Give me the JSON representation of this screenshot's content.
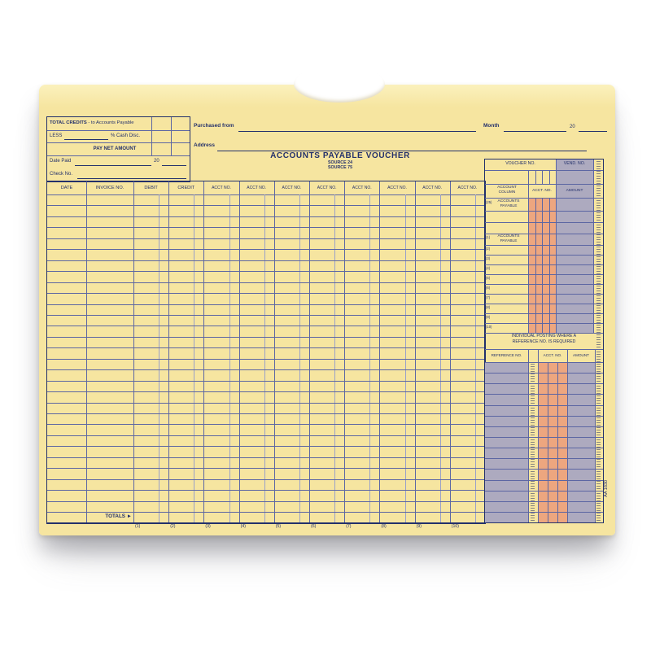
{
  "colors": {
    "paper": "#f6e5a0",
    "paper-light": "#fbf1bd",
    "ink": "#23306b",
    "line": "#5c66a3",
    "line-light": "#9aa1c9",
    "orange": "#eda67f",
    "gray": "#adaabf"
  },
  "form": {
    "title": "ACCOUNTS PAYABLE VOUCHER",
    "source_line1": "SOURCE 24",
    "source_line2": "SOURCE 75",
    "form_number": "AA 1830"
  },
  "top_left_box": {
    "row1_bold": "TOTAL CREDITS",
    "row1_rest": "- to Accounts Payable",
    "row2_pre": "LESS",
    "row2_post": "% Cash Disc.",
    "row3_label": "PAY NET AMOUNT",
    "date_paid_label": "Date Paid",
    "date_paid_year": "20",
    "check_no_label": "Check No."
  },
  "header_fields": {
    "purchased_from_label": "Purchased from",
    "address_label": "Address",
    "month_label": "Month",
    "month_year": "20"
  },
  "main_table": {
    "columns": [
      "DATE",
      "INVOICE NO.",
      "DEBIT",
      "CREDIT",
      "ACCT NO.",
      "ACCT NO.",
      "ACCT NO.",
      "ACCT NO.",
      "ACCT NO.",
      "ACCT NO.",
      "ACCT NO.",
      "ACCT NO."
    ],
    "row_count": 29,
    "totals_label": "TOTALS ►",
    "column_numbers": [
      "(1)",
      "(2)",
      "(3)",
      "(4)",
      "(5)",
      "(6)",
      "(7)",
      "(8)",
      "(9)",
      "(10)"
    ]
  },
  "voucher_panel": {
    "voucher_no_label": "VOUCHER NO.",
    "vend_no_label": "VEND. NO.",
    "account_column_label": "ACCOUNT COLUMN",
    "acct_no_label": "ACCT. NO.",
    "amount_label": "AMOUNT",
    "ap_row_number": "(25)",
    "ap_row_label": "ACCOUNTS PAYABLE",
    "row1_number": "(1)",
    "row1_label": "ACCOUNTS PAYABLE",
    "numbered_rows": [
      "(2)",
      "(3)",
      "(4)",
      "(5)",
      "(6)",
      "(7)",
      "(8)",
      "(9)",
      "(10)"
    ]
  },
  "reference_panel": {
    "heading_line1": "INDIVIDUAL POSTING WHERE A",
    "heading_line2": "REFERENCE NO. IS REQUIRED",
    "reference_no_label": "REFERENCE NO.",
    "acct_no_label": "ACCT. NO.",
    "amount_label": "AMOUNT",
    "row_count": 15
  }
}
